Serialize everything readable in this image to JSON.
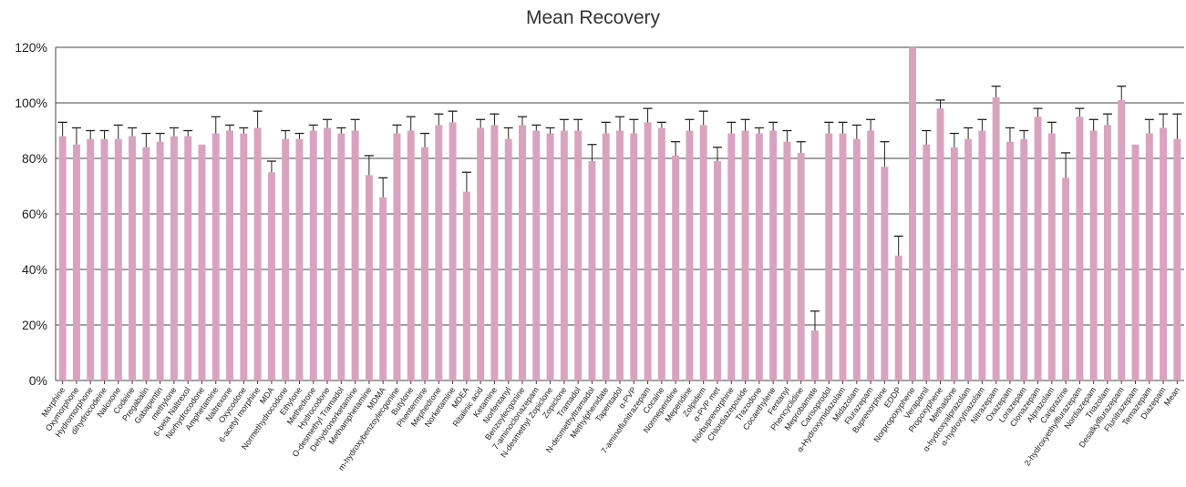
{
  "chart_data": {
    "type": "bar",
    "title": "Mean Recovery",
    "xlabel": "",
    "ylabel": "",
    "ylim": [
      0,
      1.2
    ],
    "yticks": [
      0,
      0.2,
      0.4,
      0.6,
      0.8,
      1.0,
      1.2
    ],
    "ytick_labels": [
      "0%",
      "20%",
      "40%",
      "60%",
      "80%",
      "100%",
      "120%"
    ],
    "grid": "horizontal",
    "bar_color": "#d9a3c0",
    "error_bar_color": "#222222",
    "categories": [
      "Morphine",
      "Oxymorphone",
      "Hydromorphone",
      "dihydrocodeine",
      "Naloxone",
      "Codeine",
      "Pregabalin",
      "Gabapentin",
      "methylone",
      "6-beta Naltrexol",
      "Norhydrocodone",
      "Amphetamine",
      "Naltrexone",
      "Oxycodone",
      "6-acetyl morphine",
      "MDA",
      "Normethydrocodone",
      "Ethylone",
      "Methedrone",
      "Hydrocodone",
      "O-desmethyl Tramadol",
      "Dehydronorketamine",
      "Methamphetamine",
      "MDMA",
      "m-hydroxybenzoylecgonine",
      "Butylone",
      "Phentermine",
      "Mephedrone",
      "Norketamine",
      "MDEA",
      "Ritalinic acid",
      "Ketamine",
      "Norfentanyl",
      "Benzoylecgonine",
      "7-aminoclonazepam",
      "N-desmethyl Zopiclone",
      "Zopiclone",
      "Tramadol",
      "N-desmethyltramadol",
      "Methylphenidate",
      "Tapentadol",
      "α-PVP",
      "7-aminoflunitrazepam",
      "Cocaine",
      "Normeperidine",
      "Meperidine",
      "Zolpidem",
      "α-PVP met",
      "Norbuprenorphine",
      "Chlordiazepoxide",
      "Trazodone",
      "Cocaethylene",
      "Fentanyl",
      "Phencyclidine",
      "Meprobamate",
      "Carisoprodol",
      "α-Hydroxymidazolam",
      "Midazolam",
      "Flurazepam",
      "Buprenorphine",
      "EDDP",
      "Norpropoxyphene",
      "Verapamil",
      "Propoxyphene",
      "Methadone",
      "α-hydroxyalprazolam",
      "α-hydroxytriazolam",
      "Nitrazepam",
      "Oxazepam",
      "Lorazepam",
      "Clonazepam",
      "Alprazolam",
      "Cariprazine",
      "2-hydroxyethylflurazepam",
      "Nordiazepam",
      "Triazolam",
      "Desalkylflurazepam",
      "Flunitrazepam",
      "Temazepam",
      "Diazepam",
      "Mean"
    ],
    "tick_labels_shown": [
      "Morphine",
      "Oxymorphone",
      "Hydromorphone",
      "dihydrocodeine",
      "Naloxone",
      "Codeine",
      "Pregabalin",
      "Gabapentin",
      "methylone",
      "6-beta Naltrexol",
      "Norhydrocodone",
      "Amphetamine",
      "Naltrexone",
      "Oxycodone",
      "6-acetyl morphine",
      "MDA",
      "Normethydrocodone",
      "Ethylone",
      "Methedrone",
      "Hydrocodone",
      "O-desmethyl Tramadol",
      "Dehydronorketamine",
      "Methamphetamine",
      "MDMA",
      "m-hydroxybenzoylecgonine",
      "Butylone",
      "Phentermine",
      "Mephedrone",
      "Norketamine",
      "MDEA",
      "Ritalinic acid",
      "Ketamine",
      "Norfentanyl",
      "Benzoylecgonine",
      "7-aminoclonazepam",
      "N-desmethyl Zopiclone",
      "Zopiclone",
      "Tramadol",
      "N-desmethyltramadol",
      "Methylphenidate",
      "Tapentadol",
      "α-PVP",
      "7-aminoflunitrazepam",
      "Cocaine",
      "Normeperidine",
      "Meperidine",
      "Zolpidem",
      "α-PVP met",
      "Norbuprenorphine",
      "Chlordiazepoxide",
      "Trazodone",
      "Cocaethylene",
      "Fentanyl",
      "Phencyclidine",
      "Meprobamate",
      "Carisoprodol",
      "α-Hydroxymidazolam",
      "Midazolam",
      "Flurazepam",
      "Buprenorphine",
      "EDDP",
      "Norpropoxyphene",
      "Verapamil",
      "Propoxyphene",
      "Methadone",
      "α-hydroxyalprazolam",
      "α-hydroxytriazolam",
      "Nitrazepam",
      "Oxazepam",
      "Lorazepam",
      "Clonazepam",
      "Alprazolam",
      "Cariprazine",
      "2-hydroxyethylflurazepam",
      "Nordiazepam",
      "Triazolam",
      "Desalkylflurazepam",
      "Flunitrazepam",
      "Temazepam",
      "Diazepam",
      "Mean"
    ],
    "values": [
      0.88,
      0.85,
      0.87,
      0.87,
      0.87,
      0.88,
      0.84,
      0.86,
      0.88,
      0.88,
      0.85,
      0.89,
      0.9,
      0.89,
      0.91,
      0.75,
      0.87,
      0.87,
      0.9,
      0.91,
      0.89,
      0.9,
      0.74,
      0.66,
      0.89,
      0.9,
      0.84,
      0.92,
      0.93,
      0.68,
      0.91,
      0.92,
      0.87,
      0.92,
      0.9,
      0.89,
      0.9,
      0.9,
      0.79,
      0.89,
      0.9,
      0.89,
      0.93,
      0.91,
      0.81,
      0.9,
      0.92,
      0.79,
      0.89,
      0.9,
      0.89,
      0.9,
      0.86,
      0.82,
      0.18,
      0.89,
      0.89,
      0.87,
      0.9,
      0.77,
      0.45,
      1.2,
      0.85,
      0.98,
      0.84,
      0.87,
      0.9,
      1.02,
      0.86,
      0.87,
      0.95,
      0.89,
      0.73,
      0.95,
      0.9,
      0.92,
      1.01,
      0.85,
      0.89,
      0.91,
      0.87
    ],
    "errors": [
      0.05,
      0.06,
      0.03,
      0.03,
      0.05,
      0.03,
      0.05,
      0.03,
      0.03,
      0.02,
      0.0,
      0.06,
      0.02,
      0.02,
      0.06,
      0.04,
      0.03,
      0.02,
      0.02,
      0.03,
      0.02,
      0.04,
      0.07,
      0.07,
      0.03,
      0.05,
      0.05,
      0.04,
      0.04,
      0.07,
      0.03,
      0.04,
      0.04,
      0.03,
      0.02,
      0.02,
      0.04,
      0.04,
      0.06,
      0.04,
      0.05,
      0.05,
      0.05,
      0.02,
      0.05,
      0.04,
      0.05,
      0.05,
      0.04,
      0.04,
      0.02,
      0.03,
      0.04,
      0.04,
      0.07,
      0.04,
      0.04,
      0.05,
      0.04,
      0.09,
      0.07,
      0.0,
      0.05,
      0.03,
      0.05,
      0.04,
      0.04,
      0.04,
      0.05,
      0.03,
      0.03,
      0.04,
      0.09,
      0.03,
      0.04,
      0.04,
      0.05,
      0.0,
      0.05,
      0.05,
      0.09
    ]
  }
}
